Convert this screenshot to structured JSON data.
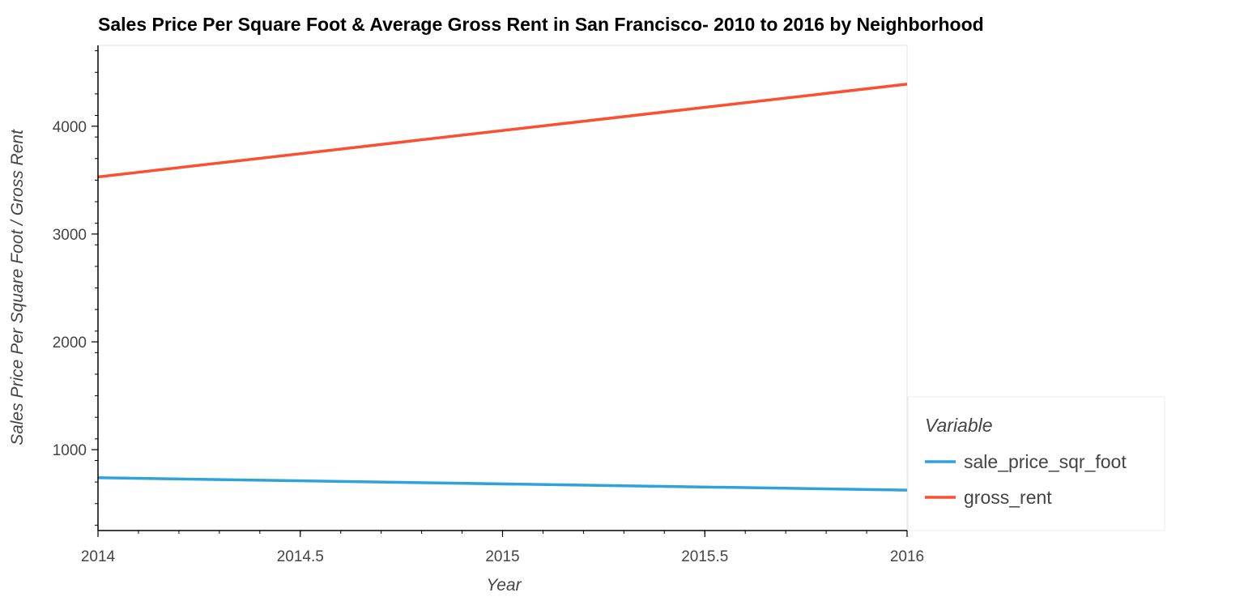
{
  "chart_data": {
    "type": "line",
    "title": "Sales Price Per Square Foot & Average Gross Rent in San Francisco- 2010 to 2016 by Neighborhood",
    "xlabel": "Year",
    "ylabel": "Sales Price Per Square Foot / Gross Rent",
    "xlim": [
      2014,
      2016
    ],
    "ylim": [
      250,
      4750
    ],
    "x_ticks": [
      "2014",
      "2014.5",
      "2015",
      "2015.5",
      "2016"
    ],
    "y_ticks": [
      "1000",
      "2000",
      "3000",
      "4000"
    ],
    "legend": {
      "title": "Variable",
      "placement": "right"
    },
    "grid": false,
    "series": [
      {
        "name": "sale_price_sqr_foot",
        "color": "#30a2da",
        "x": [
          2014,
          2016
        ],
        "y": [
          740,
          625
        ]
      },
      {
        "name": "gross_rent",
        "color": "#fc4f30",
        "x": [
          2014,
          2016
        ],
        "y": [
          3530,
          4390
        ]
      }
    ]
  }
}
